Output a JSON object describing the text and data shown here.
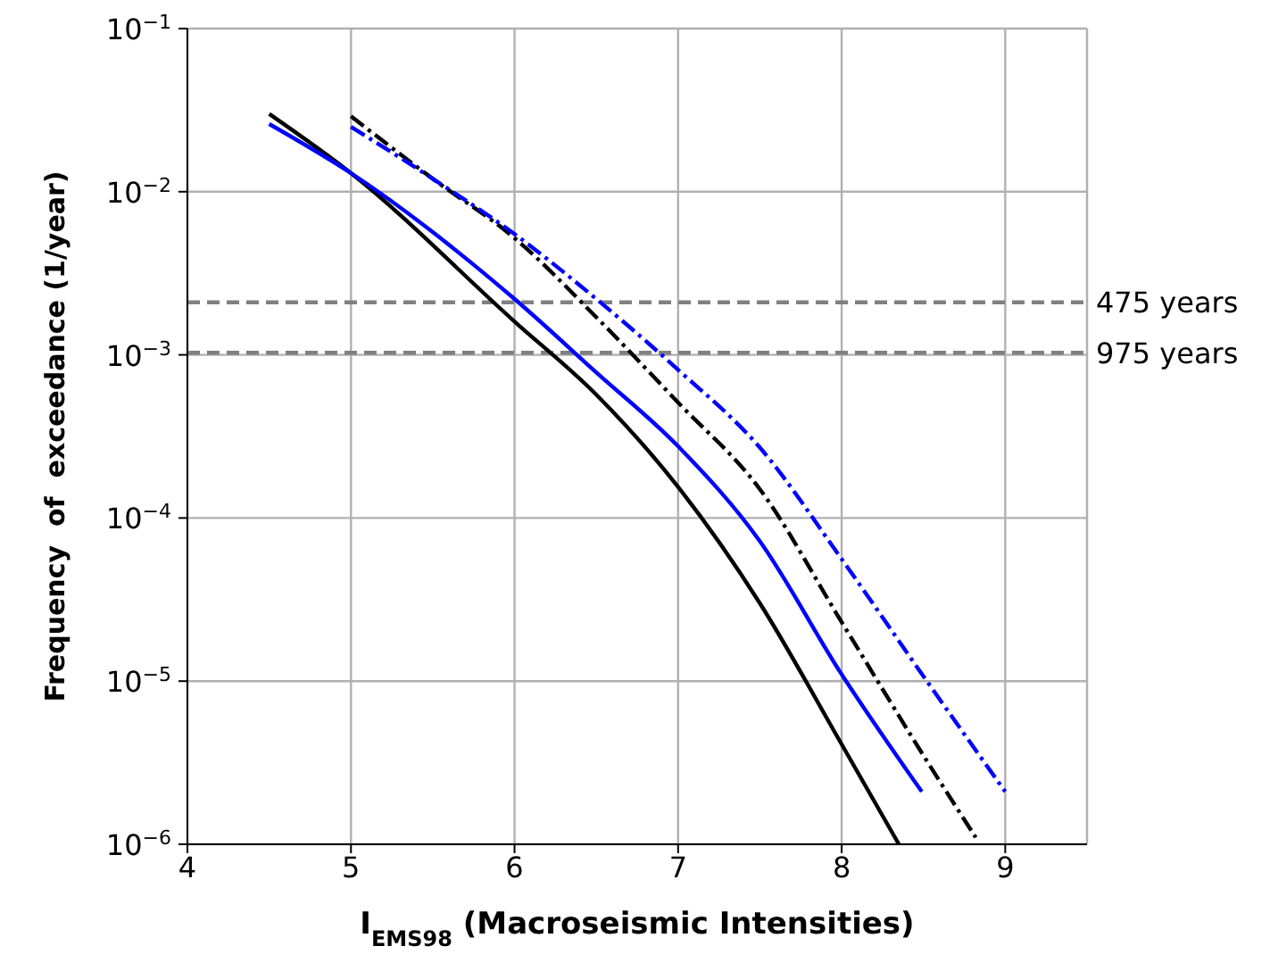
{
  "chart_data": {
    "type": "line",
    "xlabel": "I$_{EMS98}$ (Macroseismic Intensities)",
    "ylabel": "Frequency  of  exceedance (1/year)",
    "log": "y",
    "grid": true,
    "marker": "none",
    "xlim": [
      4,
      9.5
    ],
    "xticks": [
      4,
      5,
      6,
      7,
      8,
      9
    ],
    "ylim": [
      1e-06,
      0.1
    ],
    "yticks": [
      {
        "value": 1e-06,
        "label": "10$^{−6}$"
      },
      {
        "value": 1e-05,
        "label": "10$^{−5}$"
      },
      {
        "value": 0.0001,
        "label": "10$^{−4}$"
      },
      {
        "value": 0.001,
        "label": "10$^{−3}$"
      },
      {
        "value": 0.01,
        "label": "10$^{−2}$"
      },
      {
        "value": 0.1,
        "label": "10$^{−1}$"
      }
    ],
    "ref_lines": [
      {
        "axis": "y",
        "value": 0.0021,
        "label": "475 years",
        "color": "#808080",
        "line_style": "dashed"
      },
      {
        "axis": "y",
        "value": 0.00103,
        "label": "975 years",
        "color": "#808080",
        "line_style": "dashed"
      }
    ],
    "series": [
      {
        "color": "#000000",
        "line_style": "solid",
        "x": [
          4.5,
          5,
          6,
          6.5,
          7,
          7.5,
          8,
          8.35
        ],
        "values": [
          0.03,
          0.013,
          0.0016,
          0.00057,
          0.000155,
          3e-05,
          4.1e-06,
          1e-06
        ]
      },
      {
        "color": "#0000ff",
        "line_style": "solid",
        "x": [
          4.5,
          5,
          6,
          6.5,
          7,
          7.5,
          8,
          8.49
        ],
        "values": [
          0.026,
          0.013,
          0.0022,
          0.00078,
          0.000275,
          7.2e-05,
          1.1e-05,
          2.1e-06
        ]
      },
      {
        "color": "#000000",
        "line_style": "dashdot",
        "x": [
          5,
          5.5,
          6,
          6.5,
          7,
          7.5,
          8,
          8.5,
          8.82
        ],
        "values": [
          0.029,
          0.012,
          0.0052,
          0.0017,
          0.00051,
          0.00015,
          2.3e-05,
          3.5e-06,
          1.1e-06
        ]
      },
      {
        "color": "#0000ff",
        "line_style": "dashdot",
        "x": [
          5,
          5.5,
          6,
          6.5,
          7,
          7.5,
          8,
          8.5,
          9
        ],
        "values": [
          0.025,
          0.012,
          0.0055,
          0.0022,
          0.00081,
          0.00027,
          5.6e-05,
          1.07e-05,
          2.1e-06
        ]
      }
    ]
  }
}
